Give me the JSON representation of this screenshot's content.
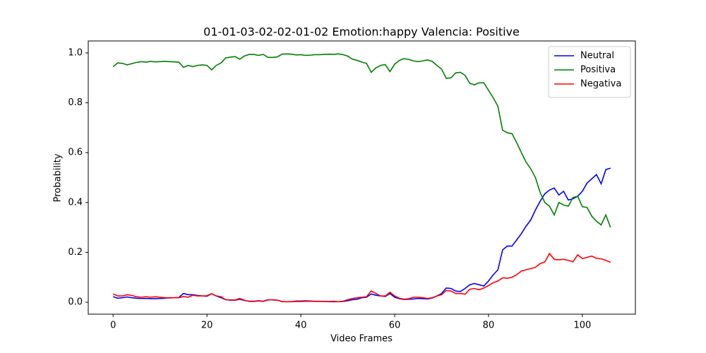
{
  "chart_data": {
    "type": "line",
    "title": "01-01-03-02-02-01-02 Emotion:happy Valencia: Positive",
    "xlabel": "Video Frames",
    "ylabel": "Probability",
    "x": [
      0,
      1,
      2,
      3,
      4,
      5,
      6,
      7,
      8,
      9,
      10,
      11,
      12,
      13,
      14,
      15,
      16,
      17,
      18,
      19,
      20,
      21,
      22,
      23,
      24,
      25,
      26,
      27,
      28,
      29,
      30,
      31,
      32,
      33,
      34,
      35,
      36,
      37,
      38,
      39,
      40,
      41,
      42,
      43,
      44,
      45,
      46,
      47,
      48,
      49,
      50,
      51,
      52,
      53,
      54,
      55,
      56,
      57,
      58,
      59,
      60,
      61,
      62,
      63,
      64,
      65,
      66,
      67,
      68,
      69,
      70,
      71,
      72,
      73,
      74,
      75,
      76,
      77,
      78,
      79,
      80,
      81,
      82,
      83,
      84,
      85,
      86,
      87,
      88,
      89,
      90,
      91,
      92,
      93,
      94,
      95,
      96,
      97,
      98,
      99,
      100,
      101,
      102,
      103,
      104,
      105,
      106
    ],
    "series": [
      {
        "name": "Neutral",
        "color": "#0000ff",
        "values": [
          0.022,
          0.016,
          0.018,
          0.021,
          0.018,
          0.016,
          0.015,
          0.015,
          0.014,
          0.014,
          0.015,
          0.016,
          0.018,
          0.018,
          0.019,
          0.035,
          0.03,
          0.03,
          0.027,
          0.025,
          0.024,
          0.034,
          0.025,
          0.018,
          0.01,
          0.008,
          0.008,
          0.012,
          0.007,
          0.004,
          0.004,
          0.006,
          0.004,
          0.01,
          0.009,
          0.008,
          0.003,
          0.002,
          0.002,
          0.003,
          0.003,
          0.004,
          0.004,
          0.003,
          0.003,
          0.003,
          0.002,
          0.002,
          0.002,
          0.003,
          0.006,
          0.01,
          0.012,
          0.018,
          0.02,
          0.033,
          0.028,
          0.025,
          0.023,
          0.035,
          0.02,
          0.014,
          0.011,
          0.012,
          0.013,
          0.015,
          0.014,
          0.013,
          0.017,
          0.025,
          0.035,
          0.057,
          0.055,
          0.045,
          0.043,
          0.055,
          0.07,
          0.075,
          0.07,
          0.065,
          0.085,
          0.11,
          0.13,
          0.21,
          0.225,
          0.225,
          0.25,
          0.275,
          0.305,
          0.33,
          0.37,
          0.405,
          0.435,
          0.45,
          0.458,
          0.43,
          0.445,
          0.41,
          0.415,
          0.425,
          0.445,
          0.478,
          0.495,
          0.512,
          0.475,
          0.532,
          0.538
        ]
      },
      {
        "name": "Positiva",
        "color": "#008000",
        "values": [
          0.945,
          0.96,
          0.958,
          0.952,
          0.957,
          0.962,
          0.965,
          0.963,
          0.966,
          0.964,
          0.965,
          0.966,
          0.965,
          0.964,
          0.963,
          0.942,
          0.95,
          0.945,
          0.95,
          0.952,
          0.95,
          0.932,
          0.95,
          0.96,
          0.98,
          0.983,
          0.985,
          0.975,
          0.988,
          0.994,
          0.994,
          0.99,
          0.994,
          0.982,
          0.982,
          0.984,
          0.995,
          0.996,
          0.995,
          0.992,
          0.993,
          0.99,
          0.991,
          0.993,
          0.993,
          0.994,
          0.995,
          0.994,
          0.996,
          0.993,
          0.987,
          0.975,
          0.97,
          0.963,
          0.958,
          0.922,
          0.94,
          0.95,
          0.953,
          0.925,
          0.955,
          0.97,
          0.977,
          0.974,
          0.968,
          0.965,
          0.968,
          0.972,
          0.966,
          0.95,
          0.935,
          0.898,
          0.9,
          0.92,
          0.922,
          0.91,
          0.878,
          0.872,
          0.88,
          0.88,
          0.85,
          0.82,
          0.786,
          0.69,
          0.68,
          0.676,
          0.64,
          0.6,
          0.562,
          0.535,
          0.5,
          0.44,
          0.4,
          0.385,
          0.35,
          0.4,
          0.39,
          0.385,
          0.42,
          0.425,
          0.383,
          0.38,
          0.345,
          0.325,
          0.31,
          0.35,
          0.3
        ]
      },
      {
        "name": "Negativa",
        "color": "#ff0000",
        "values": [
          0.033,
          0.025,
          0.025,
          0.03,
          0.027,
          0.022,
          0.02,
          0.022,
          0.02,
          0.022,
          0.02,
          0.018,
          0.017,
          0.018,
          0.018,
          0.023,
          0.02,
          0.028,
          0.025,
          0.025,
          0.026,
          0.034,
          0.025,
          0.022,
          0.01,
          0.009,
          0.009,
          0.015,
          0.008,
          0.003,
          0.003,
          0.005,
          0.003,
          0.009,
          0.01,
          0.008,
          0.002,
          0.002,
          0.002,
          0.005,
          0.005,
          0.006,
          0.005,
          0.004,
          0.004,
          0.003,
          0.003,
          0.004,
          0.002,
          0.004,
          0.01,
          0.015,
          0.018,
          0.02,
          0.022,
          0.045,
          0.035,
          0.025,
          0.025,
          0.04,
          0.025,
          0.016,
          0.012,
          0.014,
          0.02,
          0.02,
          0.018,
          0.015,
          0.018,
          0.025,
          0.03,
          0.047,
          0.045,
          0.035,
          0.035,
          0.032,
          0.052,
          0.055,
          0.05,
          0.057,
          0.067,
          0.078,
          0.085,
          0.098,
          0.096,
          0.1,
          0.11,
          0.125,
          0.13,
          0.135,
          0.14,
          0.155,
          0.162,
          0.195,
          0.172,
          0.17,
          0.172,
          0.168,
          0.162,
          0.19,
          0.175,
          0.18,
          0.185,
          0.176,
          0.174,
          0.168,
          0.16
        ]
      }
    ],
    "xlim": [
      -5.3,
      111.3
    ],
    "ylim": [
      -0.048,
      1.048
    ],
    "xticks": [
      0,
      20,
      40,
      60,
      80,
      100
    ],
    "yticks": [
      {
        "value": 0,
        "label": "0.0"
      },
      {
        "value": 0.2,
        "label": "0.2"
      },
      {
        "value": 0.4,
        "label": "0.4"
      },
      {
        "value": 0.6,
        "label": "0.6"
      },
      {
        "value": 0.8,
        "label": "0.8"
      },
      {
        "value": 1,
        "label": "1.0"
      }
    ],
    "legend": "upper right"
  }
}
